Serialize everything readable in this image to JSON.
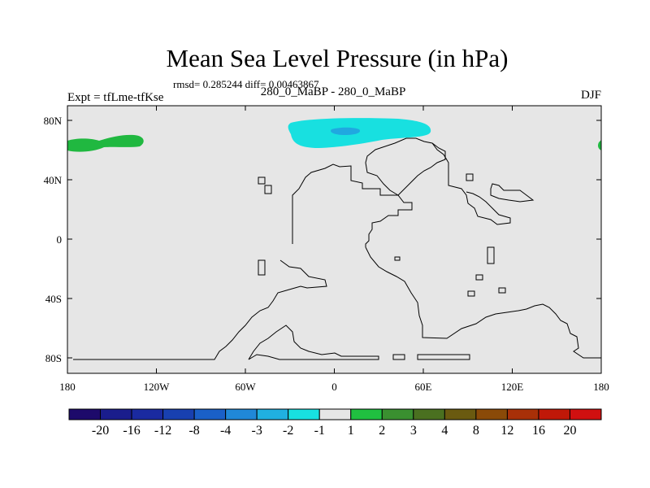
{
  "title": "Mean Sea Level Pressure (in hPa)",
  "stats": "rmsd= 0.285244 diff= 0.00463867",
  "left_label": "Expt = tfLme-tfKse",
  "center_label": "280_0_MaBP - 280_0_MaBP",
  "right_label": "DJF",
  "map": {
    "lat_ticks": [
      "80N",
      "40N",
      "0",
      "40S",
      "80S"
    ],
    "lon_ticks": [
      "180",
      "120W",
      "60W",
      "0",
      "60E",
      "120E",
      "180"
    ],
    "background_color": "#e6e6e6"
  },
  "colorbar": {
    "labels": [
      "-20",
      "-16",
      "-12",
      "-8",
      "-4",
      "-3",
      "-2",
      "-1",
      "1",
      "2",
      "3",
      "4",
      "8",
      "12",
      "16",
      "20"
    ],
    "colors": [
      "#1d0a6b",
      "#1a1d8c",
      "#1a2aa0",
      "#1840b0",
      "#1a60c8",
      "#2088d8",
      "#20b0e0",
      "#18e0e0",
      "#e6e6e6",
      "#20c040",
      "#3a9030",
      "#4a7020",
      "#6a5a10",
      "#8a4a08",
      "#a83008",
      "#c01808",
      "#d01010"
    ]
  }
}
